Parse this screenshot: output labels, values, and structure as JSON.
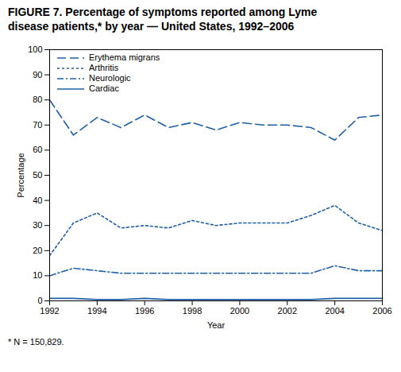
{
  "chart_data": {
    "type": "line",
    "title": "FIGURE 7. Percentage of symptoms reported among Lyme",
    "subtitle": "disease patients,* by year — United States, 1992–2006",
    "xlabel": "Year",
    "ylabel": "Percentage",
    "annotations": [
      "* N = 150,829."
    ],
    "x": [
      1992,
      1993,
      1994,
      1995,
      1996,
      1997,
      1998,
      1999,
      2000,
      2001,
      2002,
      2003,
      2004,
      2005,
      2006
    ],
    "color": "#1f5fa6",
    "series": [
      {
        "name": "Erythema migrans",
        "line_style": "dashed",
        "values": [
          80,
          66,
          73,
          69,
          74,
          69,
          71,
          68,
          71,
          70,
          70,
          69,
          64,
          73,
          74
        ]
      },
      {
        "name": "Arthritis",
        "line_style": "dotted",
        "values": [
          18,
          31,
          35,
          29,
          30,
          29,
          32,
          30,
          31,
          31,
          31,
          34,
          38,
          31,
          28
        ]
      },
      {
        "name": "Neurologic",
        "line_style": "dashdot",
        "values": [
          10,
          13,
          12,
          11,
          11,
          11,
          11,
          11,
          11,
          11,
          11,
          11,
          14,
          12,
          12
        ]
      },
      {
        "name": "Cardiac",
        "line_style": "solid",
        "values": [
          1,
          1,
          0.5,
          0.5,
          1,
          0.5,
          0.5,
          0.5,
          0.5,
          0.5,
          0.5,
          0.5,
          1,
          1,
          1
        ]
      }
    ],
    "xlim": [
      1992,
      2006
    ],
    "xticks": [
      1992,
      1994,
      1996,
      1998,
      2000,
      2002,
      2004,
      2006
    ],
    "ylim": [
      0,
      100
    ],
    "yticks": [
      0,
      10,
      20,
      30,
      40,
      50,
      60,
      70,
      80,
      90,
      100
    ],
    "grid": false,
    "legend": "upper left"
  }
}
